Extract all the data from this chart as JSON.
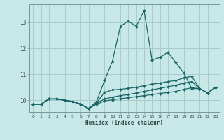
{
  "xlabel": "Humidex (Indice chaleur)",
  "background_color": "#c8e8e8",
  "grid_color": "#a8cccc",
  "line_color": "#1a6666",
  "spine_color": "#779999",
  "tick_color": "#334444",
  "xlim": [
    -0.5,
    23.5
  ],
  "ylim": [
    9.55,
    13.7
  ],
  "yticks": [
    10,
    11,
    12,
    13
  ],
  "xticks": [
    0,
    1,
    2,
    3,
    4,
    5,
    6,
    7,
    8,
    9,
    10,
    11,
    12,
    13,
    14,
    15,
    16,
    17,
    18,
    19,
    20,
    21,
    22,
    23
  ],
  "lines": [
    [
      9.85,
      9.85,
      10.05,
      10.05,
      10.0,
      9.95,
      9.85,
      9.68,
      9.95,
      10.75,
      11.5,
      12.85,
      13.05,
      12.85,
      13.45,
      11.55,
      11.65,
      11.85,
      11.45,
      11.05,
      10.45,
      10.45,
      10.28,
      10.5
    ],
    [
      9.85,
      9.85,
      10.05,
      10.05,
      10.0,
      9.95,
      9.85,
      9.68,
      9.9,
      10.3,
      10.4,
      10.42,
      10.46,
      10.5,
      10.56,
      10.62,
      10.66,
      10.72,
      10.76,
      10.86,
      10.92,
      10.45,
      10.28,
      10.5
    ],
    [
      9.85,
      9.85,
      10.05,
      10.05,
      10.0,
      9.95,
      9.85,
      9.68,
      9.88,
      10.05,
      10.12,
      10.18,
      10.22,
      10.28,
      10.34,
      10.4,
      10.46,
      10.52,
      10.58,
      10.66,
      10.72,
      10.45,
      10.28,
      10.5
    ],
    [
      9.85,
      9.85,
      10.05,
      10.05,
      10.0,
      9.95,
      9.85,
      9.68,
      9.85,
      9.97,
      10.02,
      10.06,
      10.1,
      10.14,
      10.18,
      10.22,
      10.26,
      10.3,
      10.34,
      10.42,
      10.48,
      10.45,
      10.28,
      10.5
    ]
  ]
}
